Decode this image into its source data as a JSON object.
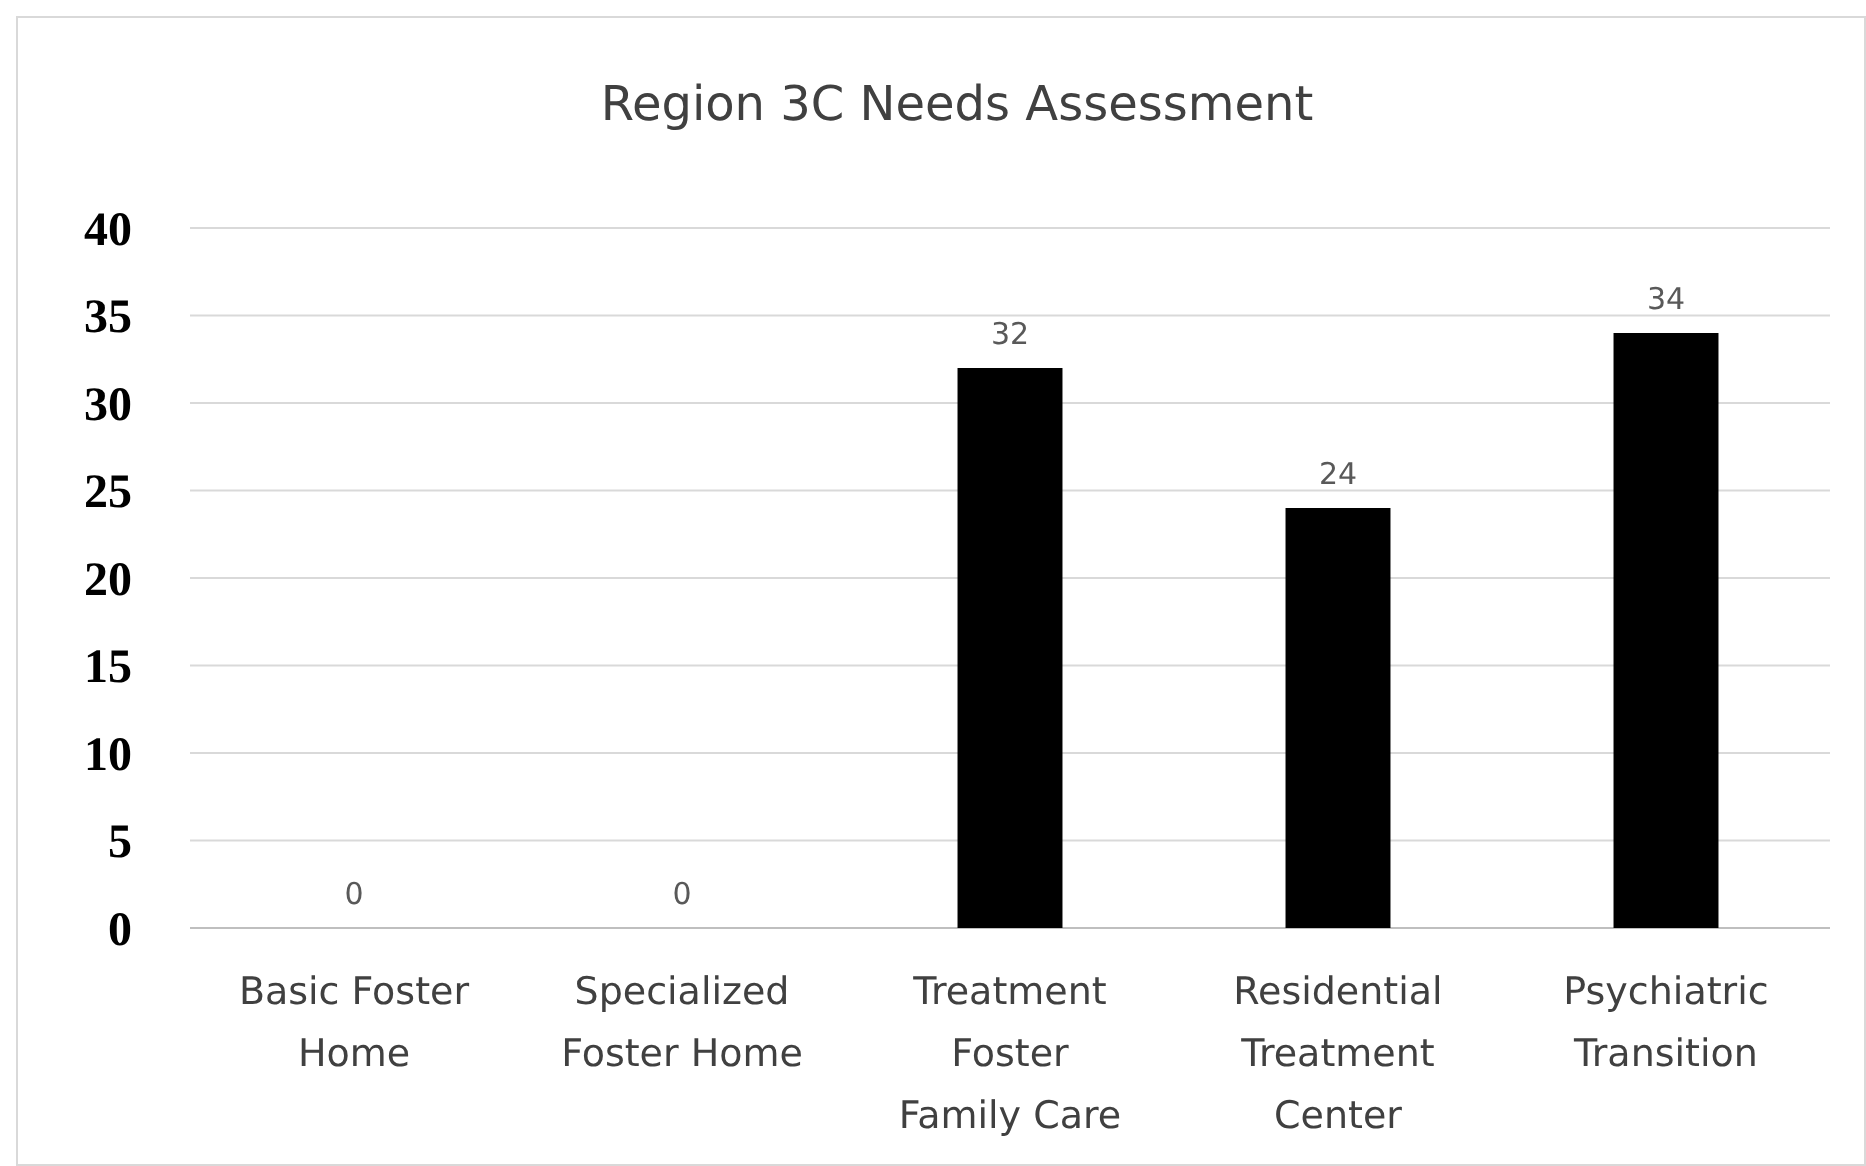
{
  "chart_data": {
    "type": "bar",
    "title": "Region 3C Needs Assessment",
    "categories": [
      "Basic Foster Home",
      "Specialized Foster Home",
      "Treatment Foster Family Care",
      "Residential Treatment Center",
      "Psychiatric Transition"
    ],
    "values": [
      0,
      0,
      32,
      24,
      34
    ],
    "color": "#000000",
    "ylim": [
      0,
      40
    ],
    "yticks": [
      0,
      5,
      10,
      15,
      20,
      25,
      30,
      35,
      40
    ],
    "grid": "y",
    "data_labels": true
  }
}
